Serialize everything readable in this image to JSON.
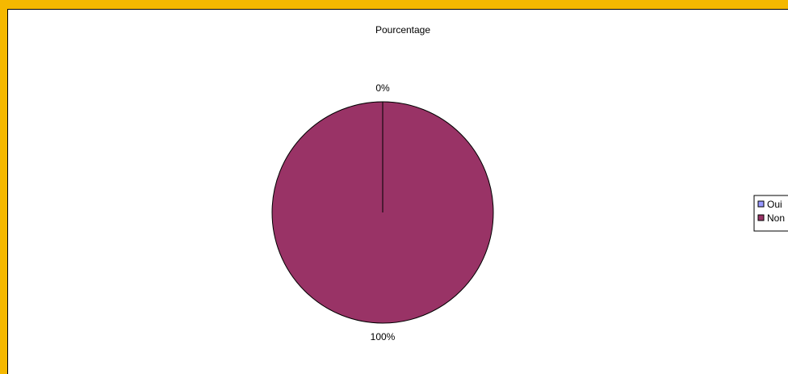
{
  "chart_data": {
    "type": "pie",
    "title": "Pourcentage",
    "categories": [
      "Oui",
      "Non"
    ],
    "values": [
      0,
      100
    ],
    "data_labels": [
      "0%",
      "100%"
    ],
    "colors": [
      "#9999ff",
      "#993366"
    ],
    "legend_position": "right"
  }
}
